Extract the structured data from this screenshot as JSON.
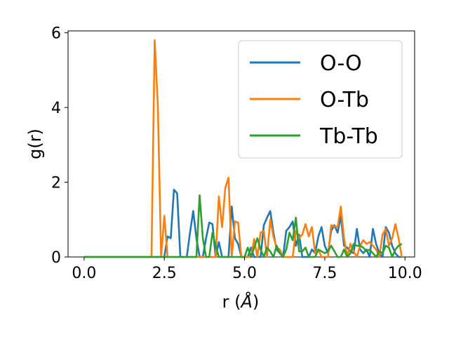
{
  "chart_data": {
    "type": "line",
    "title": "",
    "xlabel": "r (",
    "xlabel_unit": "Å",
    "xlabel_close": ")",
    "ylabel": "g(r)",
    "xlim": [
      -0.5,
      10.3
    ],
    "ylim": [
      0,
      6.05
    ],
    "xticks": [
      0.0,
      2.5,
      5.0,
      7.5,
      10.0
    ],
    "xtick_labels": [
      "0.0",
      "2.5",
      "5.0",
      "7.5",
      "10.0"
    ],
    "yticks": [
      0,
      2,
      4,
      6
    ],
    "ytick_labels": [
      "0",
      "2",
      "4",
      "6"
    ],
    "grid": false,
    "legend_position": "top-right",
    "series": [
      {
        "name": "O-O",
        "color": "#1f77b4",
        "x": [
          0.0,
          2.5,
          2.6,
          2.7,
          2.8,
          2.9,
          3.0,
          3.1,
          3.2,
          3.3,
          3.4,
          3.5,
          3.6,
          3.7,
          3.8,
          3.9,
          4.0,
          4.1,
          4.2,
          4.3,
          4.4,
          4.5,
          4.6,
          4.7,
          4.8,
          4.9,
          5.0,
          5.1,
          5.2,
          5.3,
          5.4,
          5.5,
          5.6,
          5.7,
          5.8,
          5.9,
          6.0,
          6.1,
          6.2,
          6.3,
          6.4,
          6.5,
          6.6,
          6.7,
          6.8,
          6.9,
          7.0,
          7.1,
          7.2,
          7.3,
          7.4,
          7.5,
          7.6,
          7.7,
          7.8,
          7.9,
          8.0,
          8.1,
          8.2,
          8.3,
          8.4,
          8.5,
          8.6,
          8.7,
          8.8,
          8.9,
          9.0,
          9.1,
          9.2,
          9.3,
          9.4,
          9.5,
          9.6,
          9.7,
          9.8,
          9.9
        ],
        "y": [
          0.0,
          0.0,
          0.55,
          0.5,
          1.8,
          1.7,
          0.0,
          0.0,
          0.0,
          0.65,
          1.23,
          0.5,
          0.0,
          0.0,
          0.5,
          0.92,
          0.88,
          0.0,
          0.4,
          0.0,
          0.0,
          0.0,
          1.35,
          0.5,
          0.35,
          0.0,
          0.0,
          0.0,
          0.25,
          0.0,
          0.0,
          0.0,
          0.85,
          1.05,
          1.23,
          0.65,
          0.2,
          0.1,
          0.0,
          0.7,
          0.8,
          0.95,
          0.3,
          0.6,
          0.0,
          0.0,
          0.0,
          0.2,
          0.1,
          0.55,
          0.8,
          0.3,
          0.1,
          0.7,
          0.85,
          0.65,
          1.1,
          0.3,
          0.25,
          0.15,
          0.1,
          0.75,
          0.2,
          0.1,
          0.2,
          0.0,
          0.75,
          0.35,
          0.1,
          0.0,
          0.8,
          0.65,
          0.3,
          0.1,
          0.0,
          0.0
        ]
      },
      {
        "name": "O-Tb",
        "color": "#ff7f0e",
        "x": [
          0.0,
          2.1,
          2.2,
          2.3,
          2.4,
          2.5,
          2.6,
          2.7,
          2.8,
          3.0,
          3.5,
          3.8,
          3.9,
          4.0,
          4.1,
          4.2,
          4.3,
          4.4,
          4.5,
          4.6,
          4.7,
          4.8,
          4.9,
          5.0,
          5.1,
          5.2,
          5.3,
          5.4,
          5.5,
          5.6,
          5.7,
          5.8,
          5.9,
          6.0,
          6.1,
          6.2,
          6.3,
          6.4,
          6.5,
          6.6,
          6.7,
          6.8,
          6.9,
          7.0,
          7.1,
          7.2,
          7.3,
          7.4,
          7.5,
          7.6,
          7.7,
          7.8,
          7.9,
          8.0,
          8.1,
          8.2,
          8.3,
          8.4,
          8.5,
          8.6,
          8.7,
          8.8,
          8.9,
          9.0,
          9.1,
          9.2,
          9.3,
          9.4,
          9.5,
          9.6,
          9.7,
          9.8,
          9.9
        ],
        "y": [
          0.0,
          0.0,
          5.8,
          4.0,
          0.0,
          1.1,
          0.0,
          0.0,
          0.0,
          0.0,
          0.0,
          0.0,
          0.0,
          0.0,
          0.0,
          1.62,
          0.8,
          1.85,
          2.12,
          0.0,
          0.95,
          0.92,
          0.0,
          0.0,
          0.0,
          0.0,
          0.48,
          0.0,
          0.65,
          0.7,
          0.0,
          1.0,
          0.55,
          0.25,
          0.2,
          0.0,
          0.0,
          0.0,
          0.0,
          0.7,
          0.5,
          0.6,
          0.88,
          0.55,
          0.8,
          0.1,
          0.2,
          0.0,
          0.0,
          0.0,
          0.85,
          0.82,
          0.8,
          1.35,
          0.5,
          0.0,
          0.35,
          0.15,
          0.0,
          0.3,
          0.45,
          0.35,
          0.4,
          0.3,
          0.2,
          0.0,
          0.6,
          0.75,
          0.3,
          0.5,
          0.88,
          0.5,
          0.0
        ]
      },
      {
        "name": "Tb-Tb",
        "color": "#2ca02c",
        "x": [
          0.0,
          3.4,
          3.5,
          3.6,
          3.7,
          3.8,
          3.9,
          4.0,
          4.1,
          4.2,
          4.3,
          4.4,
          4.5,
          4.6,
          4.7,
          4.8,
          4.9,
          5.0,
          5.1,
          5.2,
          5.3,
          5.4,
          5.5,
          5.6,
          5.7,
          5.8,
          5.9,
          6.0,
          6.1,
          6.2,
          6.3,
          6.4,
          6.5,
          6.6,
          6.7,
          6.8,
          6.9,
          7.0,
          7.1,
          7.2,
          7.3,
          7.4,
          7.5,
          7.6,
          7.7,
          7.8,
          7.9,
          8.0,
          8.1,
          8.2,
          8.3,
          8.4,
          8.5,
          8.6,
          8.7,
          8.8,
          8.9,
          9.0,
          9.1,
          9.2,
          9.3,
          9.4,
          9.5,
          9.6,
          9.7,
          9.8,
          9.9
        ],
        "y": [
          0.0,
          0.0,
          0.0,
          1.65,
          0.5,
          0.0,
          0.0,
          0.65,
          0.3,
          0.0,
          0.0,
          0.0,
          0.0,
          0.0,
          0.0,
          0.0,
          0.0,
          0.0,
          0.25,
          0.0,
          0.25,
          0.5,
          0.2,
          0.0,
          0.25,
          0.15,
          0.0,
          0.3,
          0.1,
          0.0,
          0.2,
          0.65,
          0.45,
          1.05,
          0.15,
          0.15,
          0.25,
          0.0,
          0.0,
          0.0,
          0.2,
          0.15,
          0.1,
          0.15,
          0.3,
          0.15,
          0.0,
          0.0,
          0.2,
          0.0,
          0.1,
          0.35,
          0.3,
          0.3,
          0.25,
          0.15,
          0.2,
          0.1,
          0.0,
          0.15,
          0.1,
          0.3,
          0.25,
          0.0,
          0.2,
          0.3,
          0.35
        ]
      }
    ]
  }
}
